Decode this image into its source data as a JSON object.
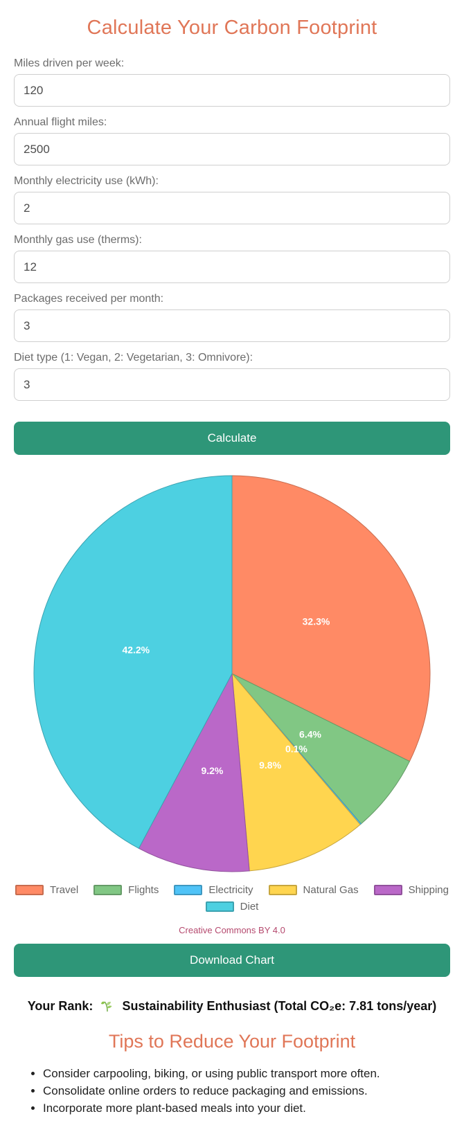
{
  "title": "Calculate Your Carbon Footprint",
  "form": {
    "fields": [
      {
        "label": "Miles driven per week:",
        "value": "120"
      },
      {
        "label": "Annual flight miles:",
        "value": "2500"
      },
      {
        "label": "Monthly electricity use (kWh):",
        "value": "2"
      },
      {
        "label": "Monthly gas use (therms):",
        "value": "12"
      },
      {
        "label": "Packages received per month:",
        "value": "3"
      },
      {
        "label": "Diet type (1: Vegan, 2: Vegetarian, 3: Omnivore):",
        "value": "3"
      }
    ],
    "calculate_label": "Calculate"
  },
  "chart_data": {
    "type": "pie",
    "categories": [
      "Travel",
      "Flights",
      "Electricity",
      "Natural Gas",
      "Shipping",
      "Diet"
    ],
    "values": [
      32.3,
      6.4,
      0.1,
      9.8,
      9.2,
      42.2
    ],
    "slice_labels": [
      "32.3%",
      "6.4%",
      "0.1%",
      "9.8%",
      "9.2%",
      "42.2%"
    ],
    "colors": [
      "#FF8A65",
      "#81C784",
      "#4FC3F7",
      "#FFD54F",
      "#BA68C8",
      "#4DD0E1"
    ],
    "start_at_top_clockwise": true,
    "legend_position": "bottom",
    "label_color": "#ffffff"
  },
  "attribution": {
    "label": "Creative Commons BY 4.0"
  },
  "download_label": "Download Chart",
  "rank": {
    "prefix": "Your Rank:",
    "icon": "herb-leaf",
    "text": "Sustainability Enthusiast (Total CO₂e: 7.81 tons/year)"
  },
  "tips": {
    "title": "Tips to Reduce Your Footprint",
    "items": [
      "Consider carpooling, biking, or using public transport more often.",
      "Consolidate online orders to reduce packaging and emissions.",
      "Incorporate more plant-based meals into your diet."
    ]
  },
  "theme": {
    "accent": "#E07657",
    "button_green": "#2E9678",
    "attribution_color": "#B5496E"
  }
}
